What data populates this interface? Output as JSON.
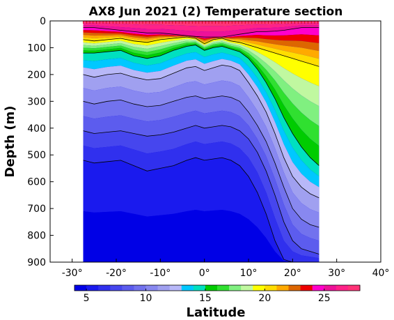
{
  "chart_data": {
    "type": "heatmap",
    "title": "AX8 Jun 2021 (2) Temperature section",
    "xlabel": "Latitude",
    "ylabel": "Depth (m)",
    "xlim": [
      -35,
      40
    ],
    "ylim": [
      900,
      0
    ],
    "xticks": [
      -30,
      -20,
      -10,
      0,
      10,
      20,
      30,
      40
    ],
    "xtick_labels": [
      "-30°",
      "-20°",
      "-10°",
      "0°",
      "10°",
      "20°",
      "30°",
      "40°"
    ],
    "yticks": [
      0,
      100,
      200,
      300,
      400,
      500,
      600,
      700,
      800,
      900
    ],
    "ytick_labels": [
      "0",
      "100",
      "200",
      "300",
      "400",
      "500",
      "600",
      "700",
      "800",
      "900"
    ],
    "data_extent_lat": [
      -27.5,
      26
    ],
    "colorbar": {
      "range": [
        4,
        28
      ],
      "step": 1,
      "ticks": [
        5,
        10,
        15,
        20,
        25
      ],
      "tick_labels": [
        "5",
        "10",
        "15",
        "20",
        "25"
      ],
      "colors": [
        "#0000e6",
        "#1a1aee",
        "#3030ee",
        "#4646ee",
        "#5c5cee",
        "#7272ee",
        "#8888f0",
        "#a0a0f0",
        "#b8b8f8",
        "#00c8ff",
        "#00e0c0",
        "#00cc00",
        "#30e030",
        "#80f080",
        "#c0f8a0",
        "#ffff00",
        "#ffdd00",
        "#ffaa00",
        "#dd6600",
        "#ee0000",
        "#ff00cc",
        "#ee1199",
        "#ff2288",
        "#ff3377"
      ]
    },
    "section": {
      "latitudes": [
        -27.5,
        -25,
        -22,
        -19,
        -16,
        -13,
        -10,
        -7,
        -4,
        -2,
        0,
        2,
        4,
        6,
        8,
        10,
        12,
        14,
        16,
        18,
        20,
        22,
        24,
        26
      ],
      "isotherm_depths_m": [
        {
          "temp": 25,
          "depths": [
            25,
            25,
            30,
            35,
            40,
            45,
            45,
            50,
            55,
            58,
            60,
            60,
            60,
            55,
            50,
            45,
            40,
            40,
            38,
            35,
            30,
            25,
            25,
            25
          ]
        },
        {
          "temp": 20,
          "depths": [
            70,
            75,
            70,
            65,
            75,
            80,
            70,
            65,
            60,
            65,
            85,
            70,
            65,
            75,
            80,
            90,
            100,
            110,
            120,
            130,
            140,
            150,
            160,
            170
          ]
        },
        {
          "temp": 15,
          "depths": [
            120,
            120,
            115,
            110,
            130,
            140,
            130,
            110,
            95,
            90,
            110,
            100,
            95,
            105,
            115,
            140,
            180,
            230,
            290,
            360,
            420,
            470,
            510,
            540
          ]
        },
        {
          "temp": 12,
          "depths": [
            200,
            210,
            200,
            195,
            210,
            220,
            215,
            195,
            175,
            170,
            185,
            175,
            165,
            170,
            185,
            230,
            280,
            340,
            420,
            510,
            580,
            620,
            645,
            660
          ]
        },
        {
          "temp": 10,
          "depths": [
            300,
            310,
            300,
            295,
            310,
            320,
            315,
            300,
            285,
            280,
            290,
            285,
            280,
            285,
            300,
            340,
            390,
            450,
            530,
            620,
            700,
            740,
            760,
            770
          ]
        },
        {
          "temp": 8,
          "depths": [
            410,
            420,
            415,
            410,
            420,
            430,
            425,
            415,
            400,
            390,
            400,
            395,
            390,
            395,
            410,
            440,
            490,
            560,
            650,
            750,
            820,
            850,
            860,
            870
          ]
        },
        {
          "temp": 6,
          "depths": [
            520,
            530,
            525,
            520,
            540,
            560,
            550,
            540,
            520,
            510,
            520,
            515,
            510,
            520,
            540,
            580,
            640,
            720,
            820,
            890,
            900,
            900,
            900,
            900
          ]
        }
      ]
    }
  }
}
